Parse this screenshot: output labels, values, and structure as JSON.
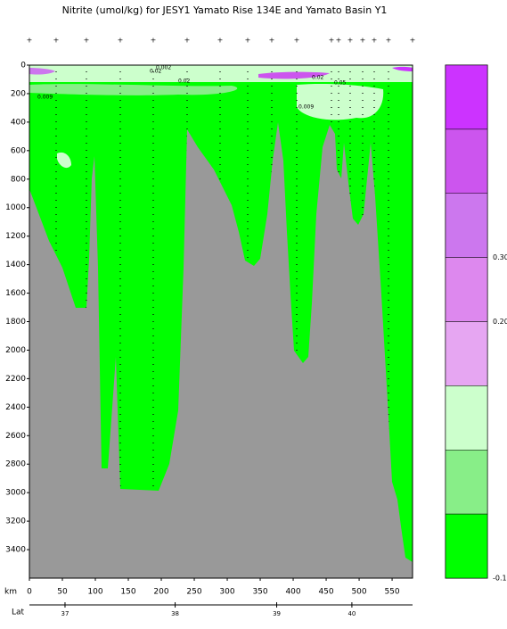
{
  "chart_data": {
    "type": "section",
    "title": "Nitrite (umol/kg) for JESY1 Yamato Rise 134E and Yamato Basin Y1",
    "xlabel": "km",
    "xlim": [
      0,
      581
    ],
    "xticks": [
      0,
      50,
      100,
      150,
      200,
      250,
      300,
      350,
      400,
      450,
      500,
      550
    ],
    "ylim": [
      0,
      3600
    ],
    "yticks": [
      0,
      200,
      400,
      600,
      800,
      1000,
      1200,
      1400,
      1600,
      1800,
      2000,
      2200,
      2400,
      2600,
      2800,
      3000,
      3200,
      3400
    ],
    "lat_label": "Lat",
    "lat_ticks": [
      {
        "value": 37,
        "km": 54
      },
      {
        "value": 38,
        "km": 221
      },
      {
        "value": 39,
        "km": 375
      },
      {
        "value": 40,
        "km": 489
      }
    ],
    "annotations": [
      "0.002",
      "0.02",
      "0.02",
      "0.009",
      "0.009",
      "0.02",
      "0.05"
    ],
    "colorbar": {
      "colors": [
        "#cc33ff",
        "#cc55ee",
        "#cc77ee",
        "#dd88ee",
        "#e6a6f2",
        "#ccffcc",
        "#88ee88",
        "#00ff00"
      ],
      "labels": [
        "0.300",
        "0.200",
        "-0.100"
      ]
    }
  }
}
